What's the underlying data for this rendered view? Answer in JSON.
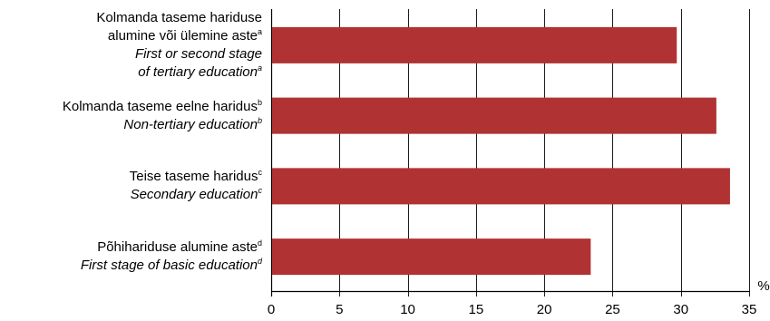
{
  "chart_data": {
    "type": "bar",
    "orientation": "horizontal",
    "categories": [
      {
        "lines": [
          {
            "text": "Kolmanda taseme hariduse",
            "sup": "",
            "italic": false
          },
          {
            "text": "alumine või ülemine aste",
            "sup": "a",
            "italic": false
          },
          {
            "text": "First or second stage",
            "sup": "",
            "italic": true
          },
          {
            "text": "of tertiary education",
            "sup": "a",
            "italic": true
          }
        ]
      },
      {
        "lines": [
          {
            "text": "Kolmanda taseme eelne haridus",
            "sup": "b",
            "italic": false
          },
          {
            "text": "Non-tertiary education",
            "sup": "b",
            "italic": true
          }
        ]
      },
      {
        "lines": [
          {
            "text": "Teise taseme haridus",
            "sup": "c",
            "italic": false
          },
          {
            "text": "Secondary education",
            "sup": "c",
            "italic": true
          }
        ]
      },
      {
        "lines": [
          {
            "text": "Põhihariduse alumine aste",
            "sup": "d",
            "italic": false
          },
          {
            "text": "First stage of basic education",
            "sup": "d",
            "italic": true
          }
        ]
      }
    ],
    "values": [
      29.7,
      32.6,
      33.6,
      23.4
    ],
    "xlim": [
      0,
      35
    ],
    "xticks": [
      0,
      5,
      10,
      15,
      20,
      25,
      30,
      35
    ],
    "unit_label": "%",
    "grid": true,
    "bar_color": "#b03233"
  }
}
